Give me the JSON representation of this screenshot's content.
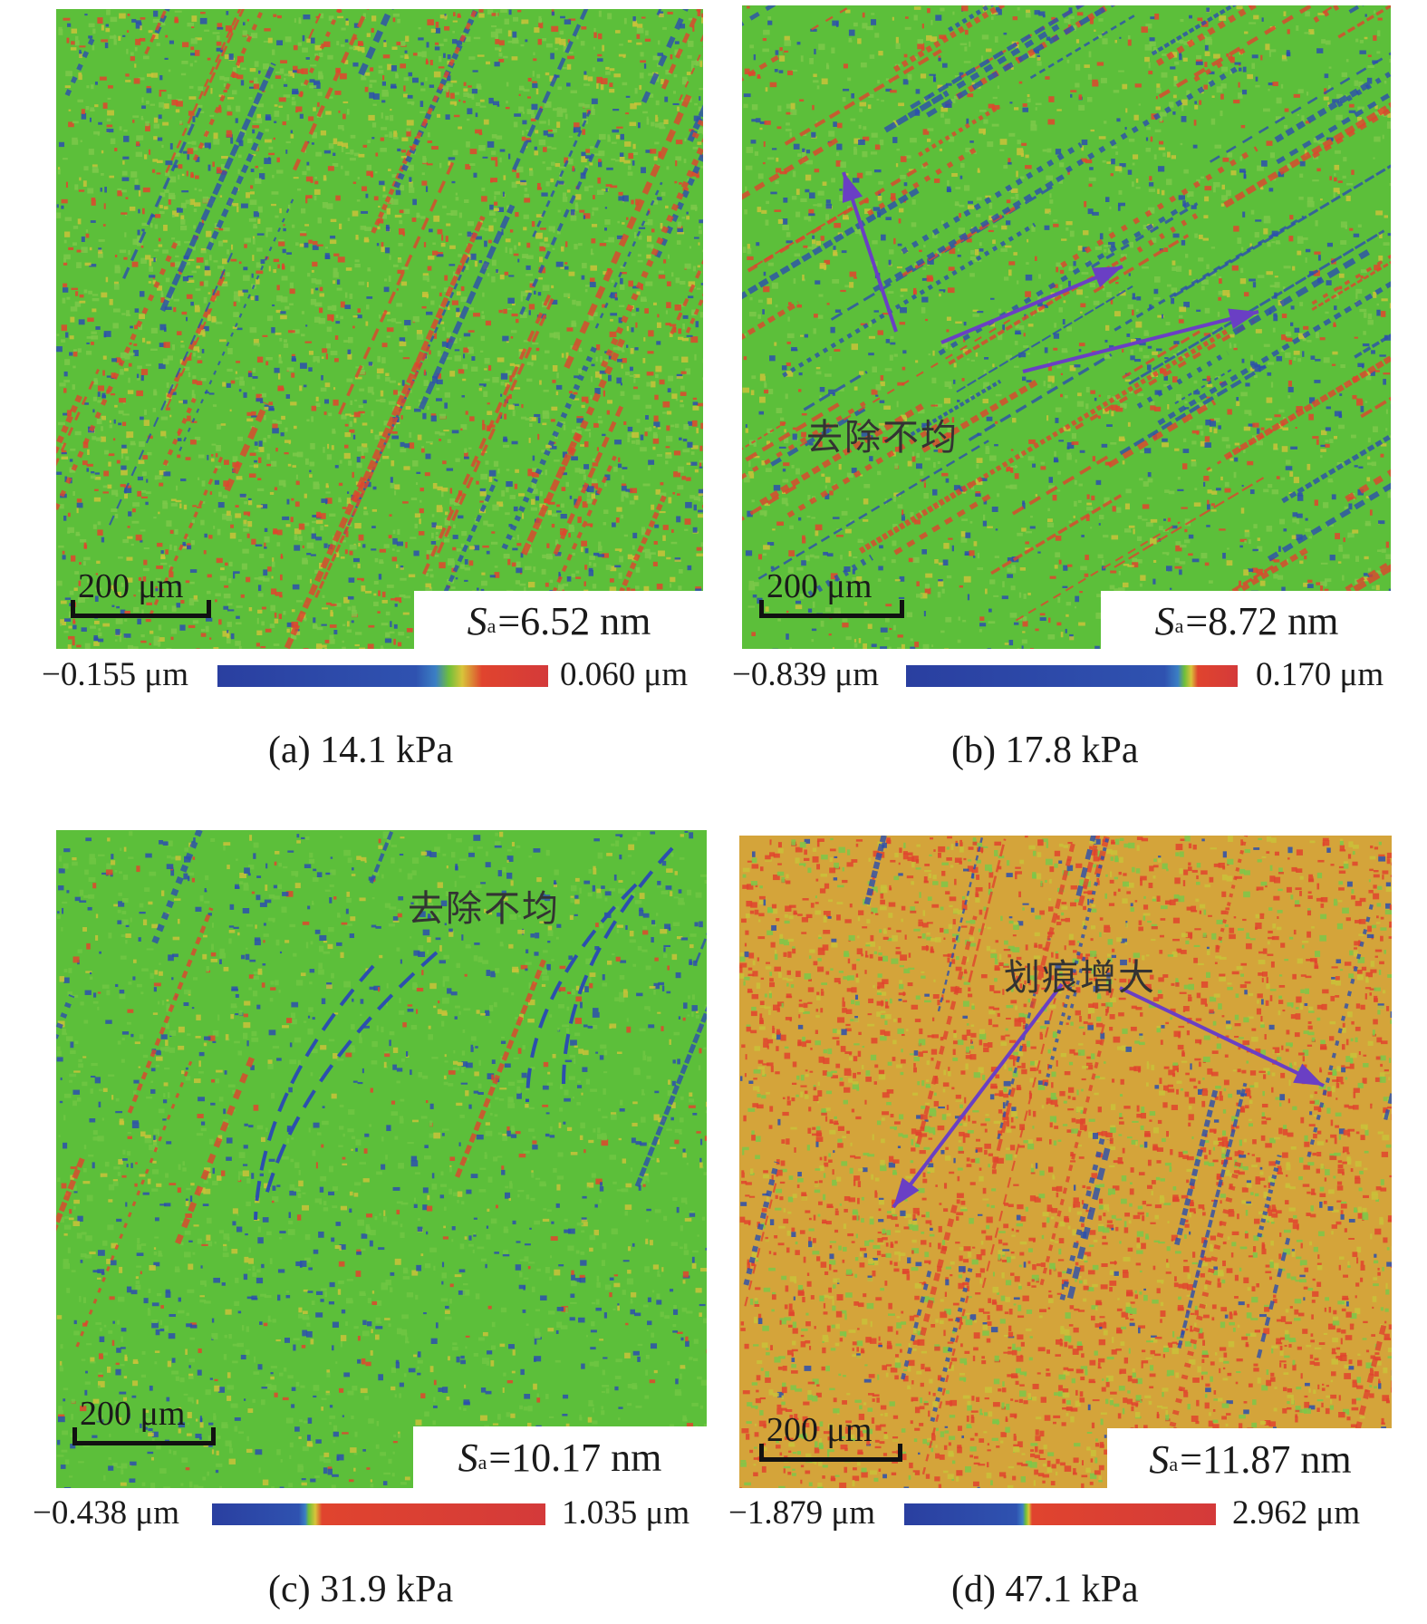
{
  "panels": [
    {
      "sa_symbol": "S",
      "sa_sub": "a",
      "sa_value": "=6.52 nm",
      "scale_label": "200 μm",
      "colorbar_min": "−0.155 μm",
      "colorbar_max": "0.060 μm",
      "caption": "(a) 14.1 kPa",
      "annotation": "",
      "dominant": "green"
    },
    {
      "sa_symbol": "S",
      "sa_sub": "a",
      "sa_value": "=8.72 nm",
      "scale_label": "200 μm",
      "colorbar_min": "−0.839 μm",
      "colorbar_max": "0.170 μm",
      "caption": "(b) 17.8 kPa",
      "annotation": "去除不均",
      "dominant": "green"
    },
    {
      "sa_symbol": "S",
      "sa_sub": "a",
      "sa_value": "=10.17 nm",
      "scale_label": "200 μm",
      "colorbar_min": "−0.438 μm",
      "colorbar_max": "1.035 μm",
      "caption": "(c) 31.9 kPa",
      "annotation": "去除不均",
      "dominant": "green"
    },
    {
      "sa_symbol": "S",
      "sa_sub": "a",
      "sa_value": "=11.87 nm",
      "scale_label": "200 μm",
      "colorbar_min": "−1.879 μm",
      "colorbar_max": "2.962 μm",
      "caption": "(d) 47.1 kPa",
      "annotation": "划痕增大",
      "dominant": "red"
    }
  ],
  "colors": {
    "map_green": "#5cbf3a",
    "map_red": "#e0442e",
    "map_blue": "#2c4fae",
    "map_yellow": "#c9c23a",
    "arrow": "#6a3fc4"
  }
}
